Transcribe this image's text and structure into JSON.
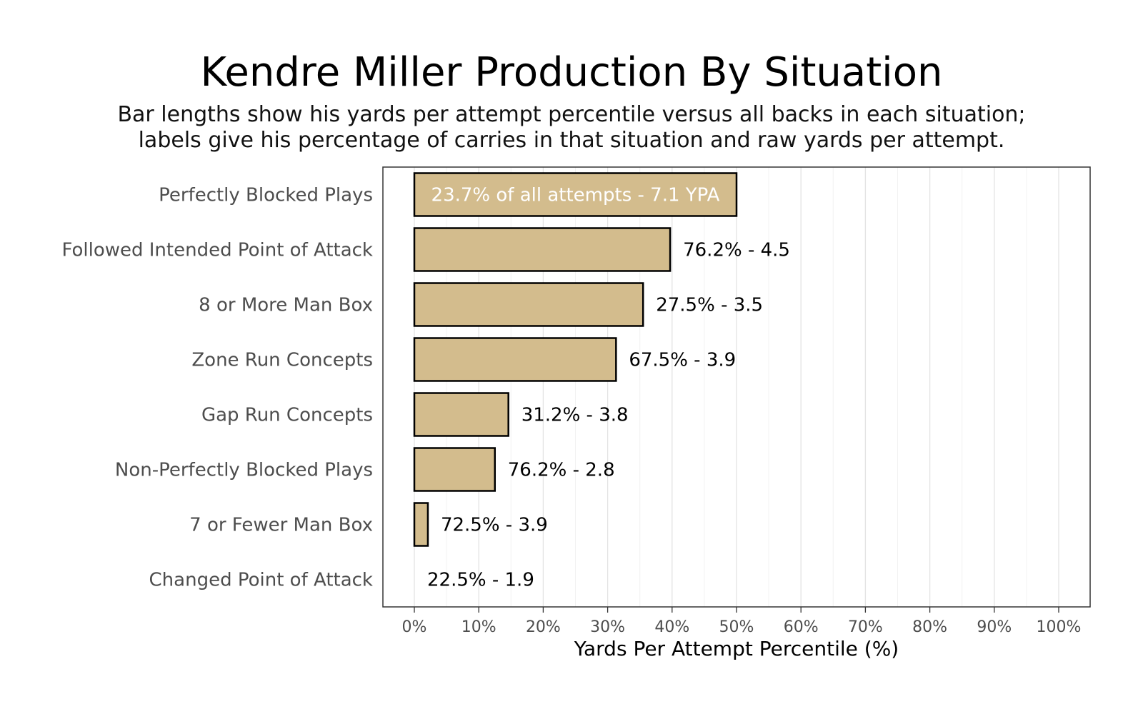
{
  "chart_data": {
    "type": "bar",
    "orientation": "horizontal",
    "title": "Kendre Miller Production By Situation",
    "subtitle_lines": [
      "Bar lengths show his yards per attempt percentile versus all backs in each situation;",
      "labels give his percentage of carries in that situation and raw yards per attempt."
    ],
    "xlabel": "Yards Per Attempt Percentile (%)",
    "ylabel": "",
    "xlim": [
      0,
      100
    ],
    "xticks": [
      0,
      10,
      20,
      30,
      40,
      50,
      60,
      70,
      80,
      90,
      100
    ],
    "xtick_labels": [
      "0%",
      "10%",
      "20%",
      "30%",
      "40%",
      "50%",
      "60%",
      "70%",
      "80%",
      "90%",
      "100%"
    ],
    "grid": true,
    "categories": [
      "Perfectly Blocked Plays",
      "Followed Intended Point of Attack",
      "8 or More Man Box",
      "Zone Run Concepts",
      "Gap Run Concepts",
      "Non-Perfectly Blocked Plays",
      "7 or Fewer Man Box",
      "Changed Point of Attack"
    ],
    "values": [
      50,
      39.7,
      35.5,
      31.3,
      14.6,
      12.5,
      2.1,
      0
    ],
    "labels": [
      "23.7% of all attempts - 7.1 YPA",
      "76.2% - 4.5",
      "27.5% - 3.5",
      "67.5% - 3.9",
      "31.2% - 3.8",
      "76.2% - 2.8",
      "72.5% - 3.9",
      "22.5% - 1.9"
    ],
    "label_inside": [
      true,
      false,
      false,
      false,
      false,
      false,
      false,
      false
    ],
    "colors": {
      "bar_fill": "#D3BC8D",
      "bar_stroke": "#000000",
      "grid_major": "#E3E3E3",
      "grid_minor": "#F2F2F2",
      "panel_border": "#333333"
    }
  }
}
